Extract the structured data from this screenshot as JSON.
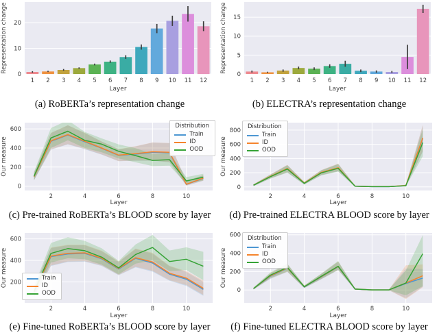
{
  "chart_data": [
    {
      "id": "a",
      "type": "bar",
      "caption": "(a) RoBERTa’s representation change",
      "xlabel": "Layer",
      "ylabel": "Representation change",
      "categories": [
        "1",
        "2",
        "3",
        "4",
        "5",
        "6",
        "7",
        "8",
        "9",
        "10",
        "11",
        "12"
      ],
      "values": [
        0.8,
        1.0,
        1.6,
        2.3,
        3.7,
        4.8,
        6.6,
        10.5,
        17.7,
        20.7,
        23.4,
        18.6
      ],
      "errors": [
        0.3,
        0.25,
        0.35,
        0.3,
        0.35,
        0.45,
        0.7,
        1.0,
        1.8,
        2.0,
        3.0,
        1.9
      ],
      "ylim": [
        0,
        28
      ],
      "yticks": [
        0,
        10,
        20
      ],
      "grid": "horizontal",
      "bar_colors": [
        "#ee8a90",
        "#ef9241",
        "#c2a23d",
        "#9ca93c",
        "#5bb254",
        "#3db283",
        "#3aaca4",
        "#3fa8bd",
        "#62a9dc",
        "#a89fe0",
        "#dc8edc",
        "#e895bb"
      ],
      "error_color": "#3d3d3d"
    },
    {
      "id": "b",
      "type": "bar",
      "caption": "(b) ELECTRA’s representation change",
      "xlabel": "Layer",
      "ylabel": "Representation change",
      "categories": [
        "1",
        "2",
        "3",
        "4",
        "5",
        "6",
        "7",
        "8",
        "9",
        "10",
        "11",
        "12"
      ],
      "values": [
        0.65,
        0.45,
        0.9,
        1.6,
        1.4,
        2.1,
        2.7,
        0.85,
        0.65,
        0.55,
        4.5,
        17.2
      ],
      "errors": [
        0.25,
        0.15,
        0.3,
        0.35,
        0.35,
        0.45,
        0.8,
        0.35,
        0.3,
        0.25,
        3.2,
        1.1
      ],
      "ylim": [
        0,
        19
      ],
      "yticks": [
        0,
        5,
        10,
        15
      ],
      "grid": "horizontal",
      "bar_colors": [
        "#ee8a90",
        "#ef9241",
        "#c2a23d",
        "#9ca93c",
        "#5bb254",
        "#3db283",
        "#3aaca4",
        "#3fa8bd",
        "#62a9dc",
        "#a89fe0",
        "#dc8edc",
        "#e895bb"
      ],
      "error_color": "#3d3d3d"
    },
    {
      "id": "c",
      "type": "line",
      "caption": "(c) Pre-trained RoBERTa’s BLOOD score by layer",
      "xlabel": "Layer",
      "ylabel": "Our measure",
      "x": [
        1,
        2,
        3,
        4,
        5,
        6,
        7,
        8,
        9,
        10,
        11
      ],
      "xticks": [
        2,
        4,
        6,
        8,
        10
      ],
      "ylim": [
        -45,
        665
      ],
      "yticks": [
        0,
        200,
        400,
        600
      ],
      "grid": "both",
      "legend": {
        "title": "Distribution",
        "position": "top-right"
      },
      "series": [
        {
          "name": "Train",
          "color": "#4c96d2",
          "values": [
            98,
            470,
            535,
            465,
            397,
            322,
            336,
            355,
            350,
            18,
            82
          ],
          "band_lower": [
            60,
            382,
            437,
            386,
            330,
            261,
            266,
            266,
            251,
            5,
            56
          ],
          "band_upper": [
            140,
            556,
            636,
            556,
            466,
            386,
            416,
            456,
            450,
            56,
            113
          ]
        },
        {
          "name": "ID",
          "color": "#f5832c",
          "values": [
            100,
            475,
            540,
            470,
            400,
            325,
            340,
            360,
            355,
            20,
            85
          ],
          "band_lower": [
            62,
            385,
            440,
            390,
            332,
            262,
            268,
            268,
            252,
            6,
            57
          ],
          "band_upper": [
            142,
            558,
            638,
            558,
            468,
            388,
            418,
            458,
            452,
            57,
            114
          ]
        },
        {
          "name": "OOD",
          "color": "#36a336",
          "values": [
            105,
            505,
            575,
            480,
            440,
            365,
            320,
            270,
            278,
            55,
            95
          ],
          "band_lower": [
            65,
            400,
            480,
            400,
            355,
            290,
            250,
            210,
            215,
            22,
            62
          ],
          "band_upper": [
            150,
            608,
            690,
            568,
            500,
            438,
            398,
            338,
            348,
            95,
            130
          ]
        }
      ]
    },
    {
      "id": "d",
      "type": "line",
      "caption": "(d) Pre-trained ELECTRA BLOOD score by layer",
      "xlabel": "Layer",
      "ylabel": "Our measure",
      "x": [
        1,
        2,
        3,
        4,
        5,
        6,
        7,
        8,
        9,
        10,
        11
      ],
      "xticks": [
        2,
        4,
        6,
        8,
        10
      ],
      "ylim": [
        -50,
        905
      ],
      "yticks": [
        0,
        200,
        400,
        600,
        800
      ],
      "grid": "both",
      "legend": {
        "title": "Distribution",
        "position": "top-left"
      },
      "series": [
        {
          "name": "Train",
          "color": "#4c96d2",
          "values": [
            24,
            148,
            255,
            52,
            200,
            265,
            10,
            4,
            4,
            18,
            682
          ],
          "band_lower": [
            12,
            120,
            206,
            35,
            165,
            220,
            2,
            0,
            0,
            8,
            495
          ],
          "band_upper": [
            36,
            176,
            308,
            70,
            236,
            325,
            18,
            10,
            10,
            30,
            868
          ]
        },
        {
          "name": "ID",
          "color": "#f5832c",
          "values": [
            25,
            150,
            260,
            55,
            205,
            270,
            10,
            5,
            5,
            20,
            690
          ],
          "band_lower": [
            13,
            122,
            208,
            37,
            168,
            222,
            3,
            1,
            1,
            9,
            505
          ],
          "band_upper": [
            37,
            178,
            312,
            72,
            238,
            328,
            19,
            11,
            11,
            32,
            875
          ]
        },
        {
          "name": "OOD",
          "color": "#36a336",
          "values": [
            24,
            145,
            252,
            50,
            198,
            262,
            10,
            4,
            4,
            18,
            625
          ],
          "band_lower": [
            12,
            118,
            200,
            33,
            162,
            215,
            2,
            0,
            0,
            8,
            432
          ],
          "band_upper": [
            36,
            172,
            305,
            68,
            232,
            320,
            18,
            10,
            10,
            30,
            818
          ]
        }
      ]
    },
    {
      "id": "e",
      "type": "line",
      "caption": "(e) Fine-tuned RoBERTa’s BLOOD score by layer",
      "xlabel": "Layer",
      "ylabel": "Our measure",
      "x": [
        1,
        2,
        3,
        4,
        5,
        6,
        7,
        8,
        9,
        10,
        11
      ],
      "xticks": [
        2,
        4,
        6,
        8,
        10
      ],
      "ylim": [
        5,
        655
      ],
      "yticks": [
        200,
        400,
        600
      ],
      "grid": "both",
      "legend": {
        "title": null,
        "position": "bottom-left"
      },
      "series": [
        {
          "name": "Train",
          "color": "#4c96d2",
          "values": [
            100,
            435,
            460,
            465,
            415,
            320,
            420,
            375,
            272,
            225,
            130
          ],
          "band_lower": [
            58,
            348,
            385,
            388,
            348,
            262,
            335,
            295,
            210,
            162,
            70
          ],
          "band_upper": [
            145,
            515,
            540,
            540,
            485,
            385,
            505,
            462,
            345,
            292,
            200
          ]
        },
        {
          "name": "ID",
          "color": "#f5832c",
          "values": [
            105,
            440,
            465,
            470,
            420,
            325,
            425,
            385,
            280,
            235,
            140
          ],
          "band_lower": [
            60,
            352,
            390,
            392,
            352,
            265,
            340,
            302,
            215,
            170,
            78
          ],
          "band_upper": [
            148,
            520,
            545,
            545,
            490,
            390,
            510,
            470,
            350,
            300,
            212
          ]
        },
        {
          "name": "OOD",
          "color": "#36a336",
          "values": [
            110,
            465,
            510,
            490,
            430,
            330,
            455,
            520,
            390,
            410,
            345
          ],
          "band_lower": [
            65,
            380,
            420,
            410,
            360,
            270,
            370,
            400,
            300,
            310,
            215
          ],
          "band_upper": [
            160,
            562,
            615,
            582,
            512,
            395,
            548,
            638,
            492,
            522,
            480
          ]
        }
      ]
    },
    {
      "id": "f",
      "type": "line",
      "caption": "(f) Fine-tuned ELECTRA BLOOD score by layer",
      "xlabel": "Layer",
      "ylabel": "Our measure",
      "x": [
        1,
        2,
        3,
        4,
        5,
        6,
        7,
        8,
        9,
        10,
        11
      ],
      "xticks": [
        2,
        4,
        6,
        8,
        10
      ],
      "ylim": [
        -140,
        620
      ],
      "yticks": [
        0,
        200,
        400,
        600
      ],
      "grid": "both",
      "legend": {
        "title": "Distribution",
        "position": "top-left"
      },
      "series": [
        {
          "name": "Train",
          "color": "#4c96d2",
          "values": [
            14,
            150,
            237,
            33,
            142,
            252,
            9,
            1,
            1,
            70,
            130
          ],
          "band_lower": [
            5,
            120,
            196,
            20,
            115,
            215,
            2,
            -3,
            -3,
            -90,
            35
          ],
          "band_upper": [
            25,
            180,
            280,
            47,
            172,
            306,
            17,
            6,
            6,
            235,
            228
          ]
        },
        {
          "name": "ID",
          "color": "#f5832c",
          "values": [
            15,
            155,
            240,
            35,
            145,
            255,
            10,
            1,
            1,
            75,
            155
          ],
          "band_lower": [
            6,
            125,
            198,
            22,
            118,
            218,
            3,
            -3,
            -3,
            -98,
            30
          ],
          "band_upper": [
            26,
            185,
            282,
            49,
            175,
            310,
            18,
            7,
            7,
            268,
            278
          ]
        },
        {
          "name": "OOD",
          "color": "#36a336",
          "values": [
            15,
            162,
            245,
            35,
            148,
            258,
            10,
            1,
            1,
            75,
            395
          ],
          "band_lower": [
            6,
            130,
            202,
            22,
            120,
            220,
            3,
            -3,
            -3,
            -58,
            42
          ],
          "band_upper": [
            27,
            192,
            288,
            49,
            178,
            315,
            18,
            7,
            7,
            212,
            598
          ]
        }
      ]
    }
  ],
  "style": {
    "plot_bg": "#eaeaf2",
    "grid_color": "#ffffff",
    "band_alpha": 0.2
  }
}
